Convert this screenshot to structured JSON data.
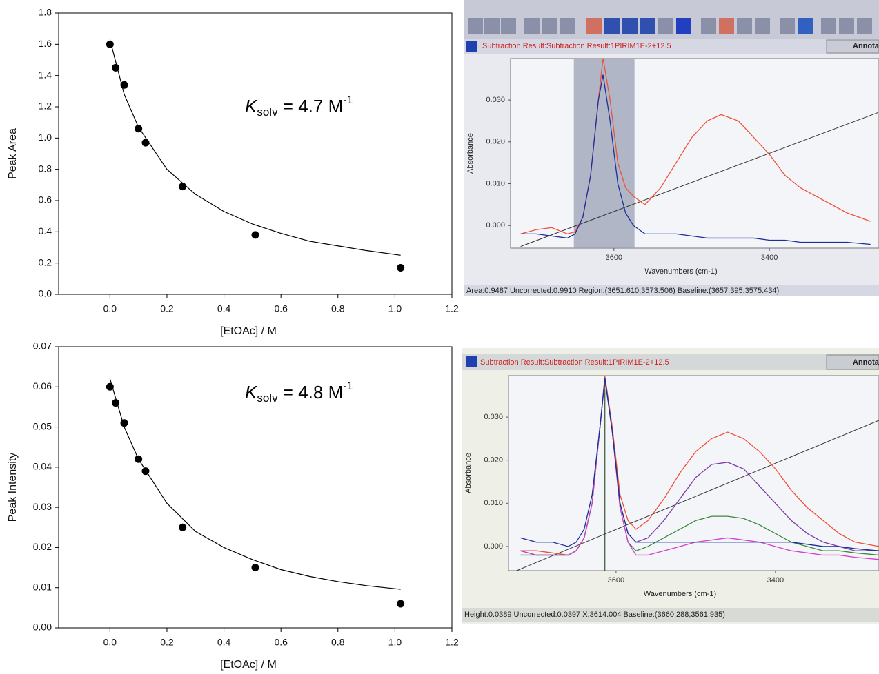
{
  "chart_data": [
    {
      "type": "scatter",
      "x": [
        0,
        0.02,
        0.05,
        0.1,
        0.125,
        0.255,
        0.51,
        1.02
      ],
      "values": [
        1.6,
        1.45,
        1.34,
        1.06,
        0.97,
        0.69,
        0.38,
        0.17
      ],
      "color": "#000000",
      "fit": {
        "x": [
          0,
          0.05,
          0.1,
          0.2,
          0.3,
          0.4,
          0.5,
          0.6,
          0.7,
          0.8,
          0.9,
          1.02
        ],
        "values": [
          1.63,
          1.28,
          1.07,
          0.8,
          0.64,
          0.53,
          0.45,
          0.39,
          0.34,
          0.31,
          0.28,
          0.25
        ],
        "color": "#000000"
      },
      "xlabel": "[EtOAc] / M",
      "ylabel": "Peak Area",
      "annotation": {
        "symbol": "K",
        "subscript": "solv",
        "text": " = 4.7 M",
        "superscript": "-1"
      },
      "xlim": [
        -0.18,
        1.2
      ],
      "xticks": [
        {
          "value": 0,
          "label": "0.0"
        },
        0.2,
        0.4,
        0.6,
        0.8,
        {
          "value": 1,
          "label": "1.0"
        },
        1.2
      ],
      "ylim": [
        0,
        1.8
      ],
      "yticks": [
        {
          "value": 0,
          "label": "0.0"
        },
        0.2,
        0.4,
        0.6,
        0.8,
        {
          "value": 1,
          "label": "1.0"
        },
        1.2,
        1.4,
        1.6,
        1.8
      ]
    },
    {
      "type": "scatter",
      "x": [
        0,
        0.02,
        0.05,
        0.1,
        0.125,
        0.255,
        0.51,
        1.02
      ],
      "values": [
        0.06,
        0.056,
        0.051,
        0.042,
        0.039,
        0.025,
        0.015,
        0.006
      ],
      "color": "#000000",
      "fit": {
        "x": [
          0,
          0.05,
          0.1,
          0.2,
          0.3,
          0.4,
          0.5,
          0.6,
          0.7,
          0.8,
          0.9,
          1.02
        ],
        "values": [
          0.062,
          0.05,
          0.042,
          0.031,
          0.024,
          0.02,
          0.017,
          0.0145,
          0.0128,
          0.0115,
          0.0105,
          0.0096
        ],
        "color": "#000000"
      },
      "xlabel": "[EtOAc] / M",
      "ylabel": "Peak Intensity",
      "annotation": {
        "symbol": "K",
        "subscript": "solv",
        "text": " = 4.8 M",
        "superscript": "-1"
      },
      "xlim": [
        -0.18,
        1.2
      ],
      "xticks": [
        {
          "value": 0,
          "label": "0.0"
        },
        0.2,
        0.4,
        0.6,
        0.8,
        {
          "value": 1,
          "label": "1.0"
        },
        1.2
      ],
      "ylim": [
        0,
        0.07
      ],
      "yticks": [
        {
          "value": 0,
          "label": "0.00"
        },
        {
          "value": 0.01,
          "label": "0.01"
        },
        {
          "value": 0.02,
          "label": "0.02"
        },
        {
          "value": 0.03,
          "label": "0.03"
        },
        {
          "value": 0.04,
          "label": "0.04"
        },
        {
          "value": 0.05,
          "label": "0.05"
        },
        {
          "value": 0.06,
          "label": "0.06"
        },
        {
          "value": 0.07,
          "label": "0.07"
        }
      ]
    },
    {
      "type": "line",
      "title_bar": "Subtraction Result:Subtraction Result:1PIRIM1E-2+12.5",
      "button": "Annota",
      "status": "Area:0.9487 Uncorrected:0.9910 Region:(3651.610;3573.506) Baseline:(3657.395;3575.434)",
      "xlabel": "Wavenumbers (cm-1)",
      "ylabel": "Absorbance",
      "x": [
        3720,
        3700,
        3680,
        3660,
        3650,
        3640,
        3630,
        3620,
        3614,
        3605,
        3595,
        3585,
        3575,
        3560,
        3540,
        3520,
        3500,
        3480,
        3462,
        3440,
        3420,
        3400,
        3380,
        3360,
        3340,
        3320,
        3300,
        3270
      ],
      "series": [
        {
          "color": "#f0503a",
          "values": [
            -0.002,
            -0.001,
            -0.0005,
            -0.002,
            -0.0015,
            0.002,
            0.012,
            0.03,
            0.04,
            0.03,
            0.015,
            0.009,
            0.007,
            0.005,
            0.009,
            0.015,
            0.021,
            0.025,
            0.0265,
            0.025,
            0.021,
            0.017,
            0.012,
            0.009,
            0.007,
            0.005,
            0.003,
            0.001
          ]
        },
        {
          "color": "#1a2f9a",
          "values": [
            -0.002,
            -0.002,
            -0.0025,
            -0.003,
            -0.002,
            0.002,
            0.012,
            0.03,
            0.036,
            0.025,
            0.01,
            0.003,
            0,
            -0.002,
            -0.002,
            -0.002,
            -0.0025,
            -0.003,
            -0.003,
            -0.003,
            -0.003,
            -0.0035,
            -0.0035,
            -0.004,
            -0.004,
            -0.004,
            -0.004,
            -0.0045
          ]
        }
      ],
      "baseline": {
        "x": [
          3720,
          3260
        ],
        "values": [
          -0.005,
          0.027
        ],
        "color": "#333333"
      },
      "shade": [
        3651.61,
        3573.506
      ],
      "xlim": [
        3733,
        3259
      ],
      "xticks": [
        3600,
        3400
      ],
      "ylim": [
        -0.0054,
        0.0399
      ],
      "yticks": [
        {
          "value": 0,
          "label": "0.000"
        },
        {
          "value": 0.01,
          "label": "0.010"
        },
        {
          "value": 0.02,
          "label": "0.020"
        },
        {
          "value": 0.03,
          "label": "0.030"
        }
      ]
    },
    {
      "type": "line",
      "title_bar": "Subtraction Result:Subtraction Result:1PIRIM1E-2+12.5",
      "button": "Annota",
      "status": "Height:0.0389 Uncorrected:0.0397 X:3614.004 Baseline:(3660.288;3561.935)",
      "xlabel": "Wavenumbers (cm-1)",
      "ylabel": "Absorbance",
      "x": [
        3720,
        3700,
        3680,
        3660,
        3650,
        3640,
        3630,
        3620,
        3614,
        3605,
        3595,
        3585,
        3575,
        3560,
        3540,
        3520,
        3500,
        3480,
        3460,
        3440,
        3420,
        3400,
        3380,
        3360,
        3340,
        3320,
        3300,
        3270
      ],
      "series": [
        {
          "color": "#f0503a",
          "values": [
            -0.001,
            -0.001,
            -0.0015,
            -0.002,
            -0.001,
            0.002,
            0.01,
            0.028,
            0.0395,
            0.028,
            0.012,
            0.006,
            0.004,
            0.006,
            0.011,
            0.017,
            0.022,
            0.025,
            0.0265,
            0.025,
            0.022,
            0.018,
            0.013,
            0.009,
            0.006,
            0.003,
            0.001,
            0
          ]
        },
        {
          "color": "#7a3aa8",
          "values": [
            -0.001,
            -0.002,
            -0.002,
            -0.002,
            -0.001,
            0.002,
            0.01,
            0.028,
            0.039,
            0.027,
            0.01,
            0.003,
            0.001,
            0.002,
            0.006,
            0.011,
            0.016,
            0.019,
            0.0195,
            0.018,
            0.014,
            0.01,
            0.006,
            0.003,
            0.001,
            0,
            -0.001,
            -0.001
          ]
        },
        {
          "color": "#3a8a3a",
          "values": [
            -0.002,
            -0.002,
            -0.002,
            -0.002,
            -0.001,
            0.002,
            0.01,
            0.028,
            0.039,
            0.027,
            0.009,
            0.001,
            -0.001,
            0,
            0.002,
            0.004,
            0.006,
            0.007,
            0.007,
            0.0065,
            0.005,
            0.003,
            0.001,
            0,
            -0.001,
            -0.001,
            -0.0015,
            -0.002
          ]
        },
        {
          "color": "#d040c8",
          "values": [
            -0.001,
            -0.002,
            -0.002,
            -0.002,
            -0.001,
            0.002,
            0.01,
            0.028,
            0.039,
            0.027,
            0.009,
            0.001,
            -0.002,
            -0.002,
            -0.001,
            0,
            0.001,
            0.0015,
            0.002,
            0.0015,
            0.001,
            0,
            -0.001,
            -0.0015,
            -0.002,
            -0.002,
            -0.0025,
            -0.003
          ]
        },
        {
          "color": "#1a2f9a",
          "values": [
            0.002,
            0.001,
            0.001,
            0,
            0.001,
            0.004,
            0.012,
            0.028,
            0.039,
            0.027,
            0.01,
            0.003,
            0.001,
            0.001,
            0.001,
            0.001,
            0.001,
            0.001,
            0.001,
            0.001,
            0.001,
            0.001,
            0.001,
            0.0005,
            0,
            0,
            -0.0005,
            -0.001
          ]
        }
      ],
      "baseline": {
        "x": [
          3730,
          3260
        ],
        "values": [
          -0.006,
          0.03
        ],
        "color": "#333333"
      },
      "cursor_x": 3614.004,
      "xlim": [
        3735,
        3270
      ],
      "xticks": [
        3600,
        3400
      ],
      "ylim": [
        -0.0056,
        0.0396
      ],
      "yticks": [
        {
          "value": 0,
          "label": "0.000"
        },
        {
          "value": 0.01,
          "label": "0.010"
        },
        {
          "value": 0.02,
          "label": "0.020"
        },
        {
          "value": 0.03,
          "label": "0.030"
        }
      ]
    }
  ]
}
